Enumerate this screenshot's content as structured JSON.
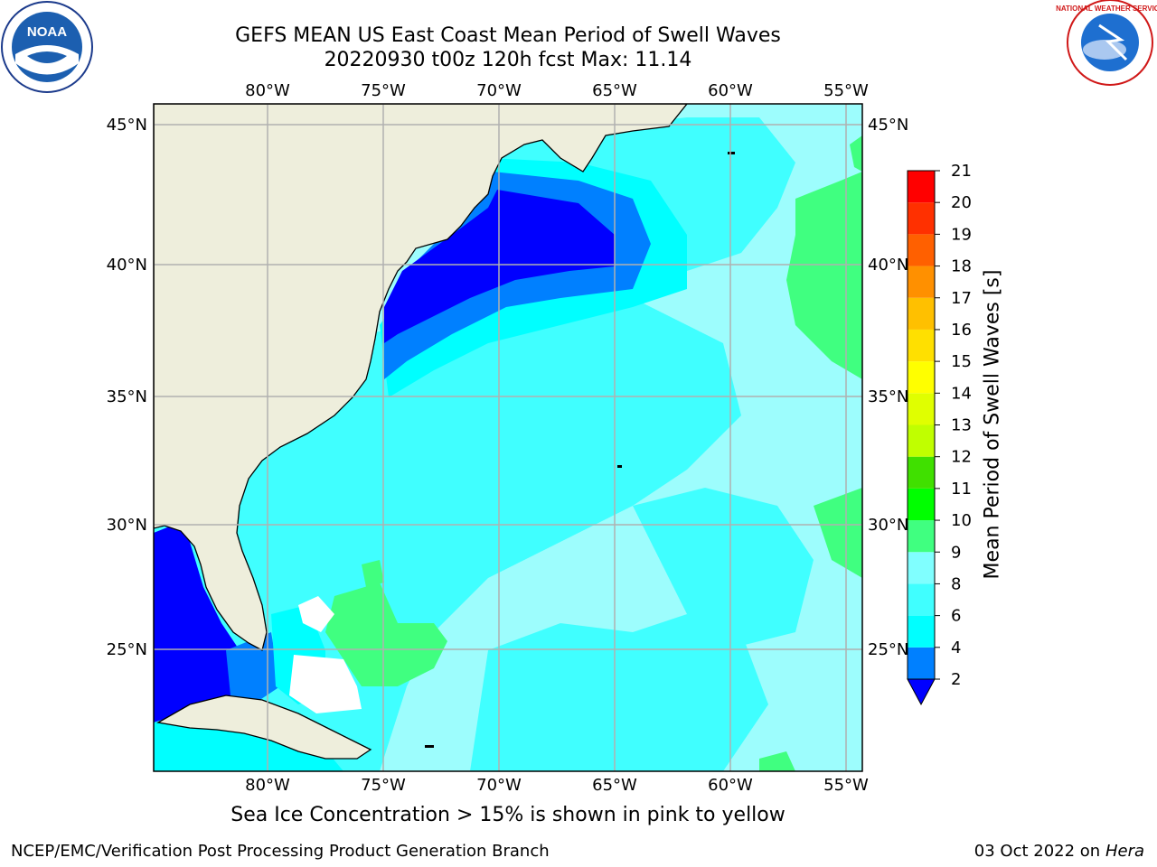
{
  "title": {
    "line1": "GEFS MEAN US East Coast Mean Period of Swell Waves",
    "line2": "20220930 t00z 120h fcst   Max: 11.14"
  },
  "map": {
    "lon_ticks": [
      "80°W",
      "75°W",
      "70°W",
      "65°W",
      "60°W",
      "55°W"
    ],
    "lat_ticks": [
      "45°N",
      "40°N",
      "35°N",
      "30°N",
      "25°N"
    ],
    "lon_range": [
      -85,
      -54.5
    ],
    "lat_range": [
      20.3,
      45.8
    ]
  },
  "colorbar": {
    "label": "Mean Period of Swell Waves [s]",
    "tick_labels": [
      "2",
      "4",
      "6",
      "8",
      "9",
      "10",
      "11",
      "12",
      "13",
      "14",
      "15",
      "16",
      "17",
      "18",
      "19",
      "20",
      "21"
    ],
    "colors": [
      "#0000ff",
      "#0080ff",
      "#00ffff",
      "#40ffff",
      "#80ffff",
      "#40ff80",
      "#00ff00",
      "#40e000",
      "#c0ff00",
      "#e0ff00",
      "#ffff00",
      "#ffe000",
      "#ffc000",
      "#ff9000",
      "#ff6000",
      "#ff3000",
      "#ff0000"
    ]
  },
  "colors": {
    "land": "#eeeedc",
    "deep_blue": "#0000ff",
    "blue": "#0080ff",
    "cyan": "#00ffff",
    "light_cyan": "#40ffff",
    "pale_cyan": "#9dfdfd",
    "green": "#40ff80",
    "grid": "#b0b0b0"
  },
  "logos": {
    "left": "NOAA",
    "right": "NATIONAL WEATHER SERVICE"
  },
  "footer": {
    "note": "Sea Ice Concentration > 15% is shown in pink to yellow",
    "credit": "NCEP/EMC/Verification Post Processing Product Generation Branch",
    "date": "03 Oct 2022 on",
    "host": "Hera"
  }
}
